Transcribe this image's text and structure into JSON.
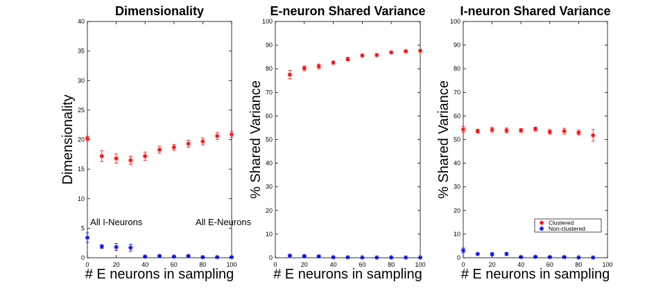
{
  "chart_data": [
    {
      "type": "scatter",
      "title": "Dimensionality",
      "xlabel": "# E neurons in sampling",
      "ylabel": "Dimensionality",
      "xlim": [
        0,
        100
      ],
      "ylim": [
        0,
        40
      ],
      "xticks": [
        0,
        20,
        40,
        60,
        80,
        100
      ],
      "yticks": [
        0,
        5,
        10,
        15,
        20,
        25,
        30,
        35,
        40
      ],
      "annotations": [
        {
          "text": "All I-Neurons",
          "x": 2,
          "y": 6
        },
        {
          "text": "All E-Neurons",
          "x": 75,
          "y": 6
        }
      ],
      "series": [
        {
          "name": "Clustered",
          "color": "#ff0000",
          "x": [
            0,
            10,
            20,
            30,
            40,
            50,
            60,
            70,
            80,
            90,
            100
          ],
          "y": [
            20.2,
            17.2,
            16.8,
            16.5,
            17.2,
            18.3,
            18.7,
            19.3,
            19.7,
            20.6,
            20.9
          ],
          "err": [
            0.4,
            0.9,
            0.8,
            0.7,
            0.7,
            0.6,
            0.5,
            0.6,
            0.6,
            0.6,
            0.5
          ]
        },
        {
          "name": "Non-clustered",
          "color": "#0000ff",
          "x": [
            0,
            10,
            20,
            30,
            40,
            50,
            60,
            70,
            80,
            90,
            100
          ],
          "y": [
            3.4,
            1.9,
            1.8,
            1.7,
            0.2,
            0.3,
            0.2,
            0.3,
            0.1,
            0.1,
            0.1
          ],
          "err": [
            0.8,
            0.3,
            0.6,
            0.6,
            0.1,
            0.1,
            0.1,
            0.1,
            0.05,
            0.05,
            0.05
          ]
        }
      ]
    },
    {
      "type": "scatter",
      "title": "E-neuron Shared Variance",
      "xlabel": "# E neurons in sampling",
      "ylabel": "% Shared Variance",
      "xlim": [
        0,
        100
      ],
      "ylim": [
        0,
        100
      ],
      "xticks": [
        0,
        20,
        40,
        60,
        80,
        100
      ],
      "yticks": [
        0,
        10,
        20,
        30,
        40,
        50,
        60,
        70,
        80,
        90,
        100
      ],
      "series": [
        {
          "name": "Clustered",
          "color": "#ff0000",
          "x": [
            10,
            20,
            30,
            40,
            50,
            60,
            70,
            80,
            90,
            100
          ],
          "y": [
            77.5,
            80.2,
            81.0,
            82.6,
            84.1,
            85.6,
            85.8,
            86.9,
            87.4,
            87.6
          ],
          "err": [
            1.8,
            1.0,
            1.0,
            0.6,
            0.7,
            0.5,
            0.5,
            0.4,
            0.4,
            0.5
          ]
        },
        {
          "name": "Non-clustered",
          "color": "#0000ff",
          "x": [
            10,
            20,
            30,
            40,
            50,
            60,
            70,
            80,
            90,
            100
          ],
          "y": [
            0.9,
            0.7,
            0.6,
            0.2,
            0.2,
            0.1,
            0.1,
            0.1,
            0.1,
            0.1
          ],
          "err": [
            0.3,
            0.3,
            0.3,
            0.1,
            0.1,
            0.1,
            0.1,
            0.1,
            0.1,
            0.1
          ]
        }
      ]
    },
    {
      "type": "scatter",
      "title": "I-neuron Shared Variance",
      "xlabel": "# E neurons in sampling",
      "ylabel": "% Shared Variance",
      "xlim": [
        0,
        100
      ],
      "ylim": [
        0,
        100
      ],
      "xticks": [
        0,
        20,
        40,
        60,
        80,
        100
      ],
      "yticks": [
        0,
        10,
        20,
        30,
        40,
        50,
        60,
        70,
        80,
        90,
        100
      ],
      "legend": {
        "location": "lower-right",
        "entries": [
          "Clustered",
          "Non-clustered"
        ]
      },
      "series": [
        {
          "name": "Clustered",
          "color": "#ff0000",
          "x": [
            0,
            10,
            20,
            30,
            40,
            50,
            60,
            70,
            80,
            90
          ],
          "y": [
            54.3,
            53.6,
            54.2,
            53.9,
            53.9,
            54.5,
            53.3,
            53.6,
            53.0,
            51.8
          ],
          "err": [
            1.2,
            0.8,
            1.0,
            1.0,
            0.8,
            0.8,
            1.0,
            1.2,
            1.0,
            2.5
          ]
        },
        {
          "name": "Non-clustered",
          "color": "#0000ff",
          "x": [
            0,
            10,
            20,
            30,
            40,
            50,
            60,
            70,
            80,
            90
          ],
          "y": [
            3.1,
            1.6,
            1.5,
            1.6,
            0.3,
            0.4,
            0.3,
            0.3,
            0.1,
            0.1
          ],
          "err": [
            1.0,
            0.4,
            0.6,
            0.6,
            0.2,
            0.2,
            0.2,
            0.2,
            0.1,
            0.1
          ]
        }
      ]
    }
  ]
}
